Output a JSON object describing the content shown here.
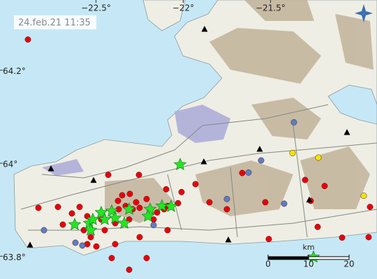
{
  "chart_data": {
    "type": "map",
    "title": "24.feb.21 11:35",
    "xlim": [
      -23.05,
      -20.89
    ],
    "ylim": [
      63.751,
      64.351
    ],
    "xticks": [
      {
        "value": -22.5,
        "label": "−22.5°"
      },
      {
        "value": -22,
        "label": "−22°"
      },
      {
        "value": -21.5,
        "label": "−21.5°"
      }
    ],
    "yticks": [
      {
        "value": 64.2,
        "label": "64.2°"
      },
      {
        "value": 64,
        "label": "64°"
      },
      {
        "value": 63.8,
        "label": "63.8°"
      }
    ],
    "series": [
      {
        "color": "#e8000b",
        "marker": "circle",
        "lon": [
          -22.89,
          -21.662,
          -21.302,
          -21.19,
          -22.43,
          -22.254,
          -22.01,
          -21.93,
          -21.85,
          -22.098,
          -22.21,
          -22.306,
          -22.374,
          -22.594,
          -22.718,
          -22.83,
          -22.638,
          -22.09,
          -22.03,
          -21.75,
          -21.53,
          -21.27,
          -20.93,
          -21.23,
          -21.51,
          -22.09,
          -22.25,
          -22.39,
          -22.498,
          -22.21,
          -22.31,
          -22.41,
          -22.55,
          -22.55,
          -22.47,
          -22.37,
          -22.29,
          -22.15,
          -22.35,
          -22.27,
          -22.39,
          -22.57,
          -22.45,
          -22.53,
          -22.31,
          -22.17,
          -21.09,
          -20.938,
          -22.69,
          -22.33,
          -22.25,
          -22.11
        ],
        "lat": [
          64.266,
          63.979,
          63.964,
          63.951,
          63.975,
          63.975,
          63.938,
          63.955,
          63.916,
          63.944,
          63.923,
          63.934,
          63.919,
          63.906,
          63.906,
          63.904,
          63.892,
          63.908,
          63.914,
          63.901,
          63.916,
          63.919,
          63.906,
          63.863,
          63.837,
          63.856,
          63.841,
          63.826,
          63.821,
          63.796,
          63.771,
          63.796,
          63.826,
          63.886,
          63.879,
          63.901,
          63.901,
          63.894,
          63.931,
          63.916,
          63.871,
          63.856,
          63.856,
          63.841,
          63.879,
          63.879,
          63.84,
          63.841,
          63.868,
          63.908,
          63.904,
          63.901
        ]
      },
      {
        "color": "#5b7fc4",
        "marker": "circle",
        "lon": [
          -21.366,
          -21.554,
          -21.626,
          -21.422,
          -22.798,
          -22.618,
          -22.578,
          -22.17,
          -21.75
        ],
        "lat": [
          64.088,
          64.006,
          63.98,
          63.913,
          63.856,
          63.829,
          63.823,
          63.867,
          63.923
        ]
      },
      {
        "color": "#f2e600",
        "marker": "circle",
        "lon": [
          -21.374,
          -21.226,
          -20.966
        ],
        "lat": [
          64.022,
          64.012,
          63.93
        ]
      },
      {
        "color": "#22e622",
        "marker": "star",
        "lon": [
          -22.018,
          -22.622,
          -22.538,
          -22.518,
          -22.47,
          -22.41,
          -22.39,
          -22.338,
          -22.31,
          -22.19,
          -22.202,
          -22.122,
          -22.07,
          -22.53,
          -22.45,
          -21.254
        ],
        "lat": [
          63.997,
          63.868,
          63.871,
          63.879,
          63.894,
          63.897,
          63.882,
          63.871,
          63.901,
          63.901,
          63.886,
          63.908,
          63.907,
          63.856,
          63.879,
          63.798
        ]
      },
      {
        "color": "#000000",
        "marker": "triangle",
        "lon": [
          -21.878,
          -21.882,
          -21.562,
          -21.062,
          -21.278,
          -22.758,
          -22.514,
          -22.878,
          -21.742
        ],
        "lat": [
          64.288,
          64.003,
          64.03,
          64.066,
          63.921,
          63.988,
          63.963,
          63.824,
          63.835
        ]
      }
    ],
    "scale": {
      "label": "km",
      "ticks": [
        0,
        10,
        20
      ]
    }
  }
}
